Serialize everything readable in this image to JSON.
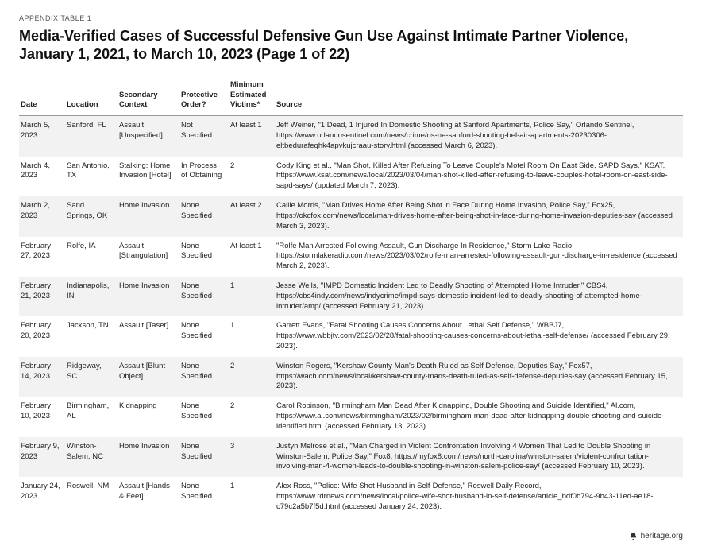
{
  "appendix_label": "APPENDIX TABLE 1",
  "title": "Media-Verified Cases of Successful Defensive Gun Use Against Intimate Partner Violence, January 1, 2021, to March 10, 2023 (Page 1 of 22)",
  "columns": {
    "date": "Date",
    "location": "Location",
    "context": "Secondary Context",
    "order": "Protective Order?",
    "victims": "Minimum Estimated Victims*",
    "source": "Source"
  },
  "rows": [
    {
      "date": "March 5, 2023",
      "location": "Sanford, FL",
      "context": "Assault [Unspecified]",
      "order": "Not Specified",
      "victims": "At least 1",
      "source": "Jeff Weiner, \"1 Dead, 1 Injured In Domestic Shooting at Sanford Apartments, Police Say,\" Orlando Sentinel, https://www.orlandosentinel.com/news/crime/os-ne-sanford-shooting-bel-air-apartments-20230306-eltbedurafeqhk4apvkujcraau-story.html (accessed March 6, 2023)."
    },
    {
      "date": "March 4, 2023",
      "location": "San Antonio, TX",
      "context": "Stalking; Home Invasion [Hotel]",
      "order": "In Process of Obtaining",
      "victims": "2",
      "source": "Cody King et al., \"Man Shot, Killed After Refusing To Leave Couple's Motel Room On East Side, SAPD Says,\" KSAT, https://www.ksat.com/news/local/2023/03/04/man-shot-killed-after-refusing-to-leave-couples-hotel-room-on-east-side-sapd-says/ (updated March 7, 2023)."
    },
    {
      "date": "March 2, 2023",
      "location": "Sand Springs, OK",
      "context": "Home Invasion",
      "order": "None Specified",
      "victims": "At least 2",
      "source": "Callie Morris, \"Man Drives Home After Being Shot in Face During Home Invasion, Police Say,\" Fox25, https://okcfox.com/news/local/man-drives-home-after-being-shot-in-face-during-home-invasion-deputies-say (accessed March 3, 2023)."
    },
    {
      "date": "February 27, 2023",
      "location": "Rolfe, IA",
      "context": "Assault [Strangulation]",
      "order": "None Specified",
      "victims": "At least 1",
      "source": "\"Rolfe Man Arrested Following Assault, Gun Discharge In Residence,\" Storm Lake Radio, https://stormlakeradio.com/news/2023/03/02/rolfe-man-arrested-following-assault-gun-discharge-in-residence (accessed March 2, 2023)."
    },
    {
      "date": "February 21, 2023",
      "location": "Indianapolis, IN",
      "context": "Home Invasion",
      "order": "None Specified",
      "victims": "1",
      "source": "Jesse Wells, \"IMPD Domestic Incident Led to Deadly Shooting of Attempted Home Intruder,\" CBS4, https://cbs4indy.com/news/indycrime/impd-says-domestic-incident-led-to-deadly-shooting-of-attempted-home-intruder/amp/ (accessed February 21, 2023)."
    },
    {
      "date": "February 20, 2023",
      "location": "Jackson, TN",
      "context": "Assault [Taser]",
      "order": "None Specified",
      "victims": "1",
      "source": "Garrett Evans, \"Fatal Shooting Causes Concerns About Lethal Self Defense,\" WBBJ7, https://www.wbbjtv.com/2023/02/28/fatal-shooting-causes-concerns-about-lethal-self-defense/ (accessed February 29, 2023)."
    },
    {
      "date": "February 14, 2023",
      "location": "Ridgeway, SC",
      "context": "Assault [Blunt Object]",
      "order": "None Specified",
      "victims": "2",
      "source": "Winston Rogers, \"Kershaw County Man's Death Ruled as Self Defense, Deputies Say,\" Fox57, https://wach.com/news/local/kershaw-county-mans-death-ruled-as-self-defense-deputies-say (accessed February 15, 2023)."
    },
    {
      "date": "February 10, 2023",
      "location": "Birmingham, AL",
      "context": "Kidnapping",
      "order": "None Specified",
      "victims": "2",
      "source": "Carol Robinson, \"Birmingham Man Dead After Kidnapping, Double Shooting and Suicide Identified,\" Al.com, https://www.al.com/news/birmingham/2023/02/birmingham-man-dead-after-kidnapping-double-shooting-and-suicide-identified.html (accessed February 13, 2023)."
    },
    {
      "date": "February 9, 2023",
      "location": "Winston-Salem, NC",
      "context": "Home Invasion",
      "order": "None Specified",
      "victims": "3",
      "source": "Justyn Melrose et al., \"Man Charged in Violent Confrontation Involving 4 Women That Led to Double Shooting in Winston-Salem, Police Say,\" Fox8, https://myfox8.com/news/north-carolina/winston-salem/violent-confrontation-involving-man-4-women-leads-to-double-shooting-in-winston-salem-police-say/ (accessed February 10, 2023)."
    },
    {
      "date": "January 24, 2023",
      "location": "Roswell, NM",
      "context": "Assault [Hands & Feet]",
      "order": "None Specified",
      "victims": "1",
      "source": "Alex Ross, \"Police: Wife Shot Husband in Self-Defense,\" Roswell Daily Record, https://www.rdrnews.com/news/local/police-wife-shot-husband-in-self-defense/article_bdf0b794-9b43-11ed-ae18-c79c2a5b7f5d.html (accessed January 24, 2023)."
    }
  ],
  "footer_text": "heritage.org",
  "colors": {
    "row_alt": "#f2f2f2",
    "text": "#222222",
    "header_border": "#999999"
  }
}
